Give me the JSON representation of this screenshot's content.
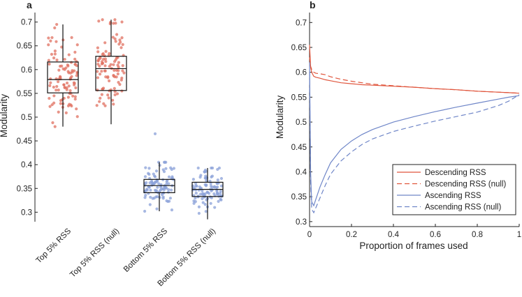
{
  "chart_data": [
    {
      "panel": "a",
      "type": "box",
      "ylabel": "Modularity",
      "ylim": [
        0.28,
        0.72
      ],
      "yticks": [
        0.3,
        0.35,
        0.4,
        0.45,
        0.5,
        0.55,
        0.6,
        0.65,
        0.7
      ],
      "categories": [
        "Top 5% RSS",
        "Top 5% RSS (null)",
        "Bottom 5% RSS",
        "Bottom 5% RSS (null)"
      ],
      "colors": [
        "#e07060",
        "#e07060",
        "#8aa0d8",
        "#8aa0d8"
      ],
      "boxes": [
        {
          "whisker_low": 0.48,
          "q1": 0.551,
          "median": 0.579,
          "q3": 0.616,
          "whisker_high": 0.695
        },
        {
          "whisker_low": 0.485,
          "q1": 0.556,
          "median": 0.602,
          "q3": 0.628,
          "whisker_high": 0.705
        },
        {
          "whisker_low": 0.302,
          "q1": 0.341,
          "median": 0.356,
          "q3": 0.369,
          "whisker_high": 0.405
        },
        {
          "whisker_low": 0.285,
          "q1": 0.333,
          "median": 0.348,
          "q3": 0.363,
          "whisker_high": 0.393
        }
      ],
      "points_per_group": 100,
      "outliers": [
        [],
        [],
        [
          0.465
        ],
        []
      ]
    },
    {
      "panel": "b",
      "type": "line",
      "xlabel": "Proportion of frames used",
      "ylabel": "Modularity",
      "xlim": [
        0,
        1
      ],
      "ylim": [
        0.29,
        0.72
      ],
      "xticks": [
        0,
        0.2,
        0.4,
        0.6,
        0.8,
        1
      ],
      "xtick_labels": [
        "0",
        "0.2",
        "0.4",
        "0.6",
        "0.8",
        "1"
      ],
      "yticks": [
        0.3,
        0.35,
        0.4,
        0.45,
        0.5,
        0.55,
        0.6,
        0.65,
        0.7
      ],
      "x": [
        0,
        0.005,
        0.01,
        0.02,
        0.03,
        0.05,
        0.075,
        0.1,
        0.15,
        0.2,
        0.25,
        0.3,
        0.4,
        0.5,
        0.6,
        0.7,
        0.8,
        0.9,
        0.95,
        1.0
      ],
      "series": [
        {
          "name": "Descending RSS",
          "style": "solid",
          "color": "#e0553c",
          "values": [
            0.655,
            0.61,
            0.6,
            0.592,
            0.59,
            0.588,
            0.585,
            0.583,
            0.579,
            0.577,
            0.575,
            0.574,
            0.572,
            0.57,
            0.567,
            0.565,
            0.562,
            0.56,
            0.559,
            0.558
          ]
        },
        {
          "name": "Descending RSS (null)",
          "style": "dashed",
          "color": "#e0553c",
          "values": [
            0.63,
            0.612,
            0.606,
            0.6,
            0.598,
            0.597,
            0.595,
            0.591,
            0.586,
            0.582,
            0.579,
            0.576,
            0.573,
            0.57,
            0.567,
            0.565,
            0.562,
            0.56,
            0.559,
            0.558
          ]
        },
        {
          "name": "Ascending RSS",
          "style": "solid",
          "color": "#6f86c8",
          "values": [
            0.62,
            0.4,
            0.34,
            0.332,
            0.345,
            0.37,
            0.395,
            0.418,
            0.445,
            0.462,
            0.475,
            0.485,
            0.5,
            0.511,
            0.521,
            0.53,
            0.538,
            0.546,
            0.55,
            0.553
          ]
        },
        {
          "name": "Ascending RSS (null)",
          "style": "dashed",
          "color": "#6f86c8",
          "values": [
            0.6,
            0.38,
            0.325,
            0.318,
            0.328,
            0.348,
            0.373,
            0.395,
            0.422,
            0.44,
            0.455,
            0.466,
            0.481,
            0.492,
            0.502,
            0.511,
            0.52,
            0.533,
            0.542,
            0.555
          ]
        }
      ],
      "legend_location": "bottom-right"
    }
  ]
}
